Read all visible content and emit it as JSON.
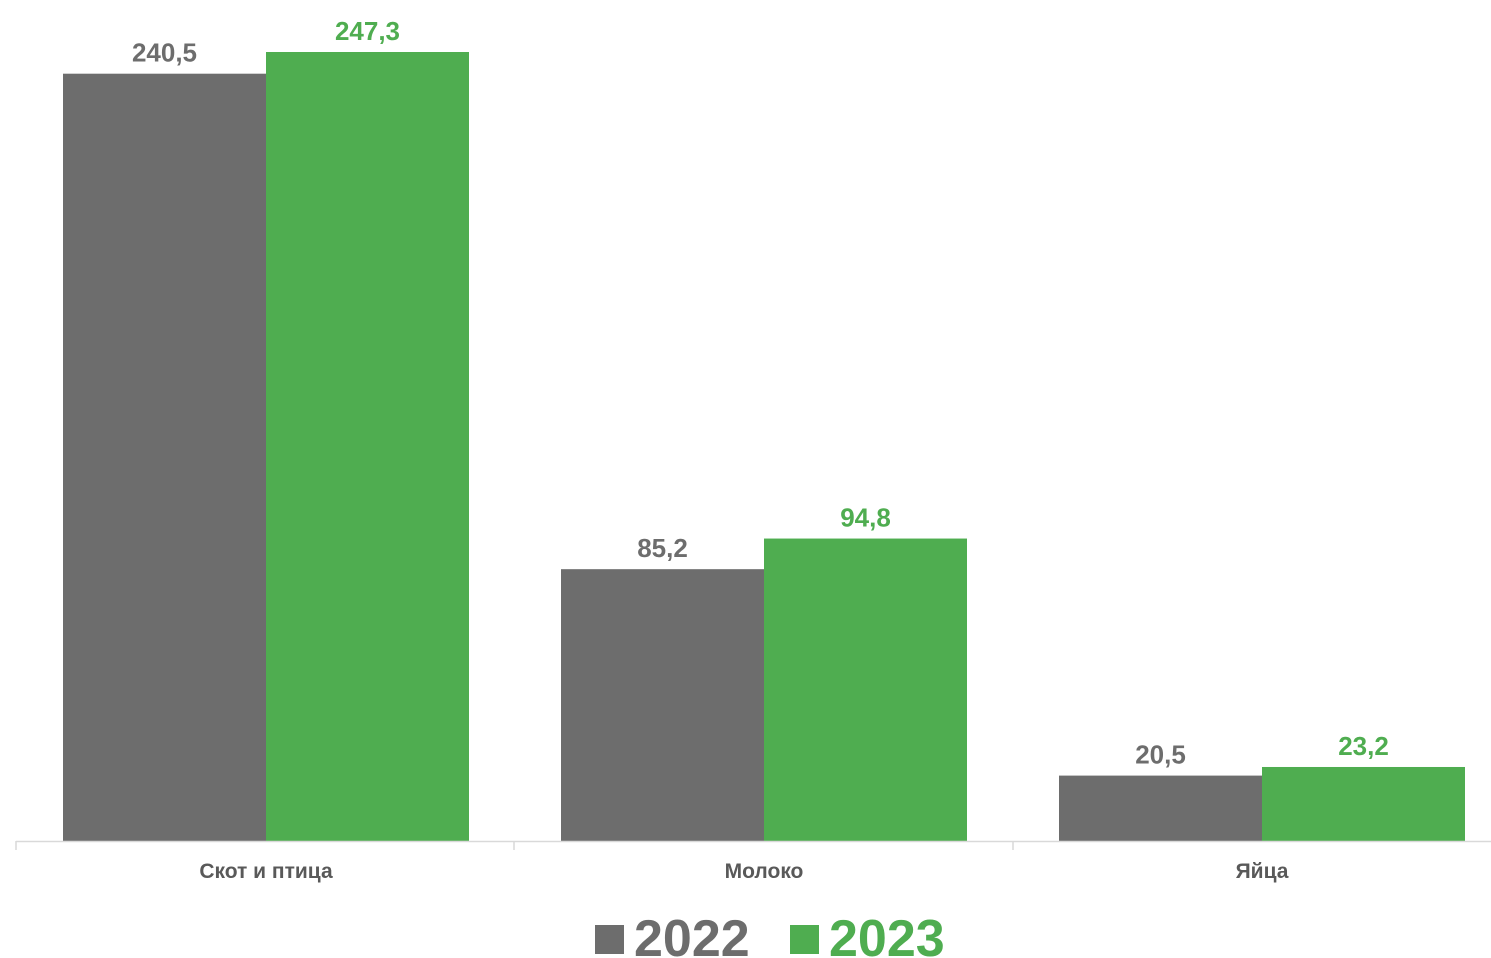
{
  "chart_data": {
    "type": "bar",
    "categories": [
      "Скот и птица",
      "Молоко",
      "Яйца"
    ],
    "series": [
      {
        "name": "2022",
        "values": [
          "240,5",
          "85,2",
          "20,5"
        ],
        "numeric": [
          240.5,
          85.2,
          20.5
        ],
        "color": "#6d6d6d"
      },
      {
        "name": "2023",
        "values": [
          "247,3",
          "94,8",
          "23,2"
        ],
        "numeric": [
          247.3,
          94.8,
          23.2
        ],
        "color": "#4fad50"
      }
    ],
    "ylim": [
      0,
      247.3
    ],
    "grid": false,
    "legend": "bottom-center",
    "axis_color": "#d9d9d9",
    "category_label_color": "#595959"
  }
}
